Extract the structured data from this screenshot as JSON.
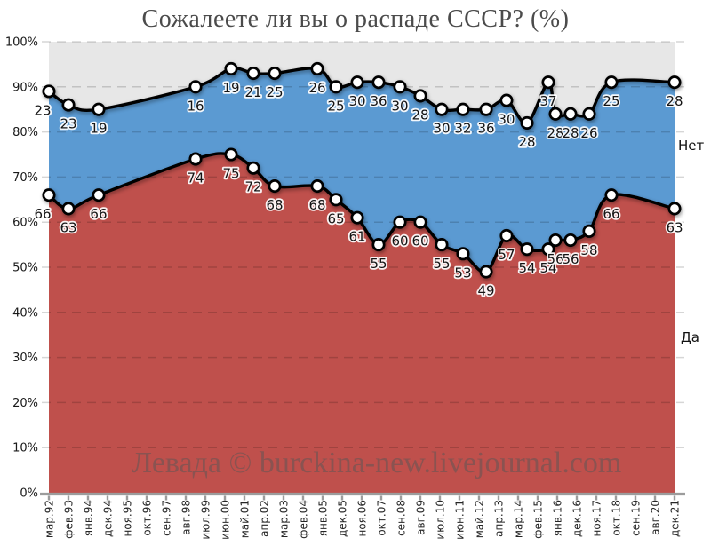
{
  "chart_data": {
    "type": "area",
    "stacked": true,
    "title": "Сожалеете ли вы о распаде СССР? (%)",
    "watermark": "Левада © burckina-new.livejournal.com",
    "right_edge_labels": {
      "no": "Нет",
      "yes": "Да"
    },
    "series_names": {
      "yes": "Да",
      "no": "Нет"
    },
    "ylim": [
      0,
      100
    ],
    "y_tick_labels": [
      "100%",
      "90%",
      "80%",
      "70%",
      "60%",
      "50%",
      "40%",
      "30%",
      "20%",
      "10%",
      "0%"
    ],
    "x_tick_labels": [
      "мар.92",
      "фев.93",
      "янв.94",
      "дек.94",
      "ноя.95",
      "окт.96",
      "сен.97",
      "авг.98",
      "июл.99",
      "июн.00",
      "май.01",
      "апр.02",
      "мар.03",
      "фев.04",
      "янв.05",
      "дек.05",
      "ноя.06",
      "окт.07",
      "сен.08",
      "авг.09",
      "июл.10",
      "июн.11",
      "май.12",
      "апр.13",
      "мар.14",
      "фев.15",
      "янв.16",
      "дек.16",
      "ноя.17",
      "окт.18",
      "сен.19",
      "авг.20",
      "дек.21"
    ],
    "points": [
      {
        "x": 0.0,
        "yes": 66,
        "no": 23
      },
      {
        "x": 0.0313,
        "yes": 63,
        "no": 23
      },
      {
        "x": 0.0795,
        "yes": 66,
        "no": 19
      },
      {
        "x": 0.2344,
        "yes": 74,
        "no": 16
      },
      {
        "x": 0.2912,
        "yes": 75,
        "no": 19
      },
      {
        "x": 0.3267,
        "yes": 72,
        "no": 21
      },
      {
        "x": 0.3608,
        "yes": 68,
        "no": 25
      },
      {
        "x": 0.429,
        "yes": 68,
        "no": 26
      },
      {
        "x": 0.4588,
        "yes": 65,
        "no": 25
      },
      {
        "x": 0.4929,
        "yes": 61,
        "no": 30
      },
      {
        "x": 0.527,
        "yes": 55,
        "no": 36
      },
      {
        "x": 0.5611,
        "yes": 60,
        "no": 30
      },
      {
        "x": 0.5938,
        "yes": 60,
        "no": 28
      },
      {
        "x": 0.6278,
        "yes": 55,
        "no": 30
      },
      {
        "x": 0.6619,
        "yes": 53,
        "no": 32
      },
      {
        "x": 0.6989,
        "yes": 49,
        "no": 36
      },
      {
        "x": 0.7315,
        "yes": 57,
        "no": 30
      },
      {
        "x": 0.7642,
        "yes": 54,
        "no": 28
      },
      {
        "x": 0.7983,
        "yes": 54,
        "no": 37
      },
      {
        "x": 0.8097,
        "yes": 56,
        "no": 28
      },
      {
        "x": 0.8338,
        "yes": 56,
        "no": 28
      },
      {
        "x": 0.8636,
        "yes": 58,
        "no": 26
      },
      {
        "x": 0.8991,
        "yes": 66,
        "no": 25
      },
      {
        "x": 1.0,
        "yes": 63,
        "no": 28
      }
    ],
    "colors": {
      "yes_area": "#bf504c",
      "no_area": "#5b9ad2",
      "undecided_area": "#e7e7e7",
      "line": "#000000",
      "marker_fill": "#ffffff",
      "grid": "rgba(0,0,0,0.16)",
      "axis": "#9c9c9c",
      "title_text": "#4b4b4b"
    }
  }
}
